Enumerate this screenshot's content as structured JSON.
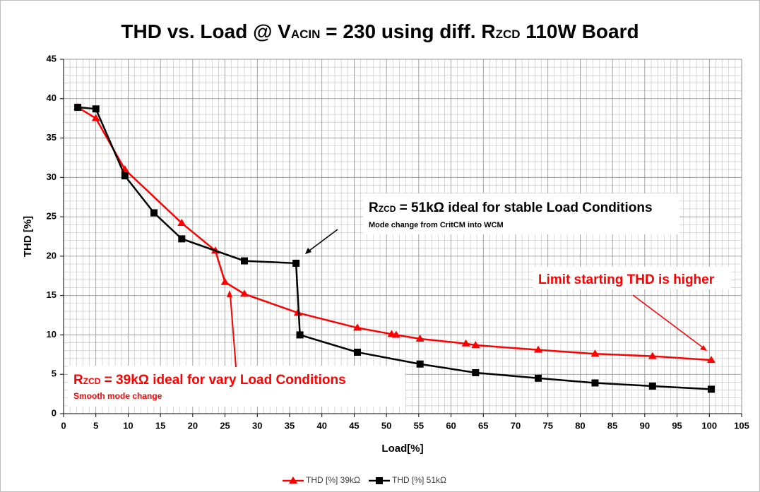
{
  "chart_data": {
    "type": "line",
    "title": [
      "THD vs. Load @ V",
      "ACIN",
      " = 230 using diff. R",
      "ZCD",
      " 110W Board"
    ],
    "xlabel": "Load[%]",
    "ylabel": "THD [%]",
    "xlim": [
      0,
      105
    ],
    "xticks": [
      0,
      5,
      10,
      15,
      20,
      25,
      30,
      35,
      40,
      45,
      50,
      55,
      60,
      65,
      70,
      75,
      80,
      85,
      90,
      95,
      100,
      105
    ],
    "ylim": [
      0,
      45
    ],
    "yticks": [
      0,
      5,
      10,
      15,
      20,
      25,
      30,
      35,
      40,
      45
    ],
    "grid": true,
    "legend": "bottom",
    "series": [
      {
        "name": "THD [%] 39kΩ",
        "color": "#ff0000",
        "marker": "triangle",
        "x": [
          2.2,
          5,
          9.5,
          18.3,
          23.5,
          25,
          28,
          36.3,
          45.5,
          50.8,
          51.5,
          55.2,
          62.3,
          63.8,
          73.5,
          82.3,
          91.2,
          100.3
        ],
        "values": [
          38.9,
          37.5,
          31,
          24.2,
          20.7,
          16.7,
          15.2,
          12.8,
          10.9,
          10.1,
          10,
          9.5,
          8.9,
          8.7,
          8.1,
          7.6,
          7.3,
          6.8
        ]
      },
      {
        "name": "THD [%] 51kΩ",
        "color": "#000000",
        "marker": "square",
        "x": [
          2.2,
          5,
          9.5,
          14,
          18.3,
          28,
          36,
          36.6,
          45.5,
          55.2,
          63.8,
          73.5,
          82.3,
          91.2,
          100.3
        ],
        "values": [
          38.9,
          38.7,
          30.2,
          25.5,
          22.2,
          19.4,
          19.1,
          10,
          7.8,
          6.3,
          5.2,
          4.5,
          3.9,
          3.5,
          3.1
        ]
      }
    ],
    "annotations": [
      {
        "parts": [
          "R",
          "ZCD",
          " = 51kΩ ideal for stable Load Conditions"
        ],
        "color": "#000000"
      },
      {
        "parts": [
          "Mode change from CritCM into WCM"
        ],
        "color": "#000000"
      },
      {
        "parts": [
          "Limit starting THD is higher"
        ],
        "color": "#ff0000"
      },
      {
        "parts": [
          "R",
          "ZCD",
          " = 39kΩ ideal for vary Load Conditions"
        ],
        "color": "#ff0000"
      },
      {
        "parts": [
          "Smooth mode change"
        ],
        "color": "#ff0000"
      }
    ]
  }
}
